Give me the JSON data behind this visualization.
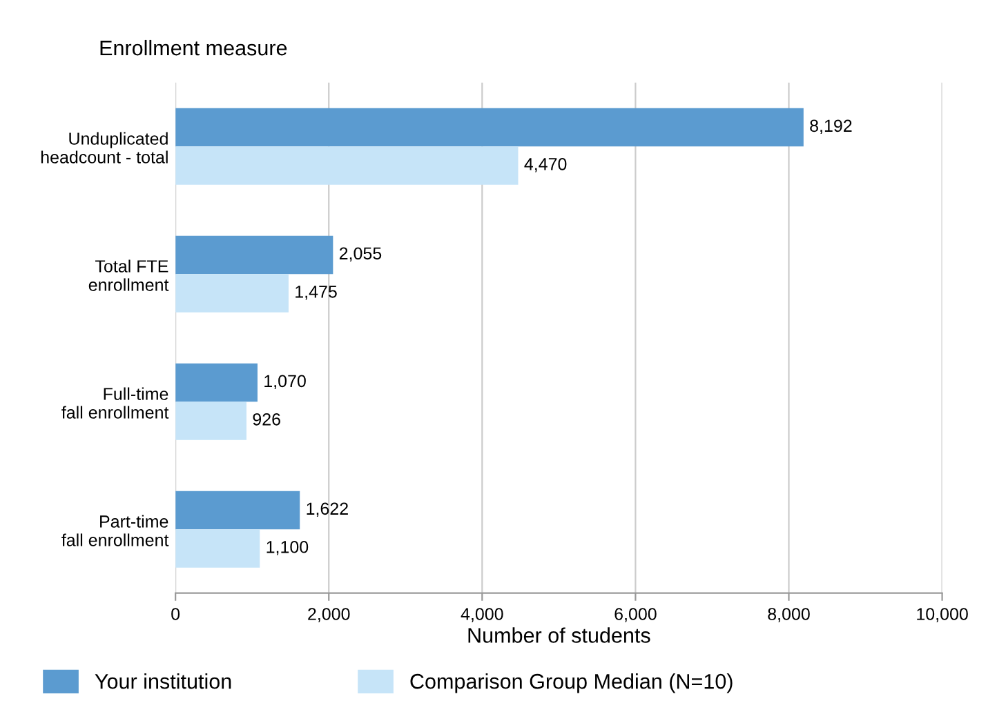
{
  "chart_data": {
    "type": "bar",
    "orientation": "horizontal",
    "ylabel": "Enrollment measure",
    "xlabel": "Number of students",
    "categories": [
      "Unduplicated\nheadcount - total",
      "Total FTE\nenrollment",
      "Full-time\nfall enrollment",
      "Part-time\nfall enrollment"
    ],
    "series": [
      {
        "name": "Your institution",
        "color": "#5b9bd0",
        "values": [
          8192,
          2055,
          1070,
          1622
        ]
      },
      {
        "name": "Comparison Group Median (N=10)",
        "color": "#c6e4f8",
        "values": [
          4470,
          1475,
          926,
          1100
        ]
      }
    ],
    "xlim": [
      0,
      10000
    ],
    "xticks": [
      {
        "value": 0,
        "label": "0"
      },
      {
        "value": 2000,
        "label": "2,000"
      },
      {
        "value": 4000,
        "label": "4,000"
      },
      {
        "value": 6000,
        "label": "6,000"
      },
      {
        "value": 8000,
        "label": "8,000"
      },
      {
        "value": 10000,
        "label": "10,000"
      }
    ],
    "value_labels": [
      [
        "8,192",
        "2,055",
        "1,070",
        "1,622"
      ],
      [
        "4,470",
        "1,475",
        "926",
        "1,100"
      ]
    ],
    "grid": "x",
    "legend": "bottom"
  }
}
